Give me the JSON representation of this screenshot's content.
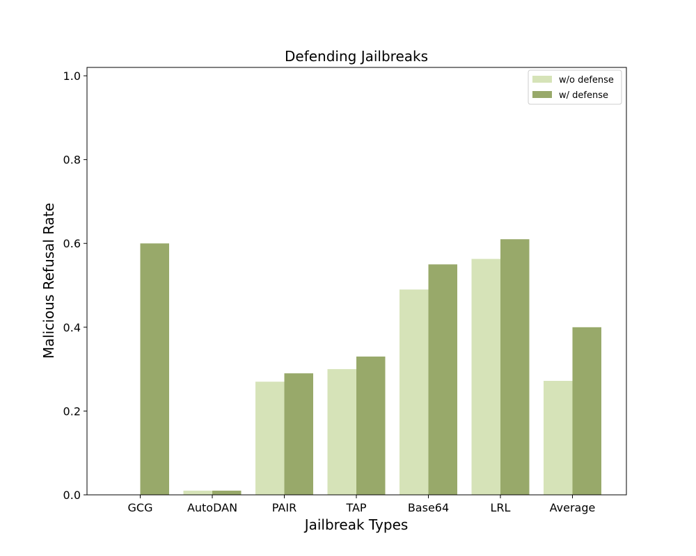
{
  "chart_data": {
    "type": "bar",
    "title": "Defending Jailbreaks",
    "xlabel": "Jailbreak Types",
    "ylabel": "Malicious Refusal Rate",
    "categories": [
      "GCG",
      "AutoDAN",
      "PAIR",
      "TAP",
      "Base64",
      "LRL",
      "Average"
    ],
    "series": [
      {
        "name": "w/o defense",
        "color": "#d6e3b8",
        "values": [
          0.0,
          0.01,
          0.27,
          0.3,
          0.49,
          0.563,
          0.272
        ]
      },
      {
        "name": "w/ defense",
        "color": "#98a96a",
        "values": [
          0.6,
          0.01,
          0.29,
          0.33,
          0.55,
          0.61,
          0.4
        ]
      }
    ],
    "ylim": [
      0,
      1.02
    ],
    "yticks": [
      "0.0",
      "0.2",
      "0.4",
      "0.6",
      "0.8",
      "1.0"
    ],
    "grid": false,
    "legend": "top-right"
  }
}
